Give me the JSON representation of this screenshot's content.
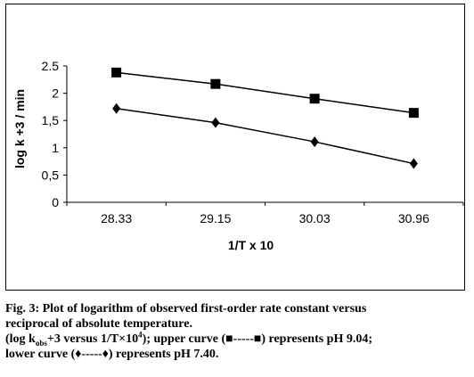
{
  "chart_data": {
    "type": "line",
    "categories": [
      "28.33",
      "29.15",
      "30.03",
      "30.96"
    ],
    "series": [
      {
        "marker": "square",
        "color": "#000000",
        "values": [
          2.38,
          2.17,
          1.9,
          1.64
        ]
      },
      {
        "marker": "diamond",
        "color": "#000000",
        "values": [
          1.72,
          1.46,
          1.11,
          0.71
        ]
      }
    ],
    "xlabel": "1/T x 10",
    "ylabel": "log k +3 / min",
    "ylim": [
      0,
      2.5
    ],
    "yticks": [
      0,
      0.5,
      1,
      1.5,
      2,
      2.5
    ],
    "ytick_labels": [
      "0",
      "0,5",
      "1",
      "1,5",
      "2",
      "2.5"
    ],
    "grid": false,
    "legend": "none"
  },
  "caption": {
    "line1": "Fig. 3: Plot of logarithm of observed first-order rate constant versus",
    "line2": "reciprocal of absolute temperature.",
    "line3_a": "(log k",
    "line3_sub": "obs",
    "line3_b": "+3 versus 1/T×10",
    "line3_sup": "4",
    "line3_c": "); upper curve (■-----■)  represents pH 9.04;",
    "line4": "lower curve (♦-----♦) represents pH 7.40."
  }
}
